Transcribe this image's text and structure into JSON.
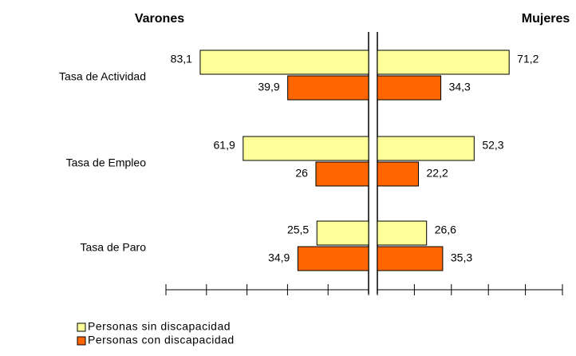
{
  "chart_data": {
    "type": "butterfly",
    "categories": [
      "Tasa de Actividad",
      "Tasa de Empleo",
      "Tasa de Paro"
    ],
    "series": [
      {
        "name": "Personas sin discapacidad",
        "color": "#ffff99"
      },
      {
        "name": "Personas con discapacidad",
        "color": "#ff6600"
      }
    ],
    "panels": [
      {
        "title": "Varones",
        "side": "left",
        "xlim": [
          0,
          100
        ],
        "xticks": [
          0,
          20,
          40,
          60,
          80,
          100
        ],
        "values": [
          [
            83.1,
            61.9,
            25.5
          ],
          [
            39.9,
            26,
            34.9
          ]
        ],
        "value_labels": [
          [
            "83,1",
            "61,9",
            "25,5"
          ],
          [
            "39,9",
            "26",
            "34,9"
          ]
        ]
      },
      {
        "title": "Mujeres",
        "side": "right",
        "xlim": [
          0,
          100
        ],
        "xticks": [
          0,
          20,
          40,
          60,
          80,
          100
        ],
        "values": [
          [
            71.2,
            52.3,
            26.6
          ],
          [
            34.3,
            22.2,
            35.3
          ]
        ],
        "value_labels": [
          [
            "71,2",
            "52,3",
            "26,6"
          ],
          [
            "34,3",
            "22,2",
            "35,3"
          ]
        ]
      }
    ]
  }
}
